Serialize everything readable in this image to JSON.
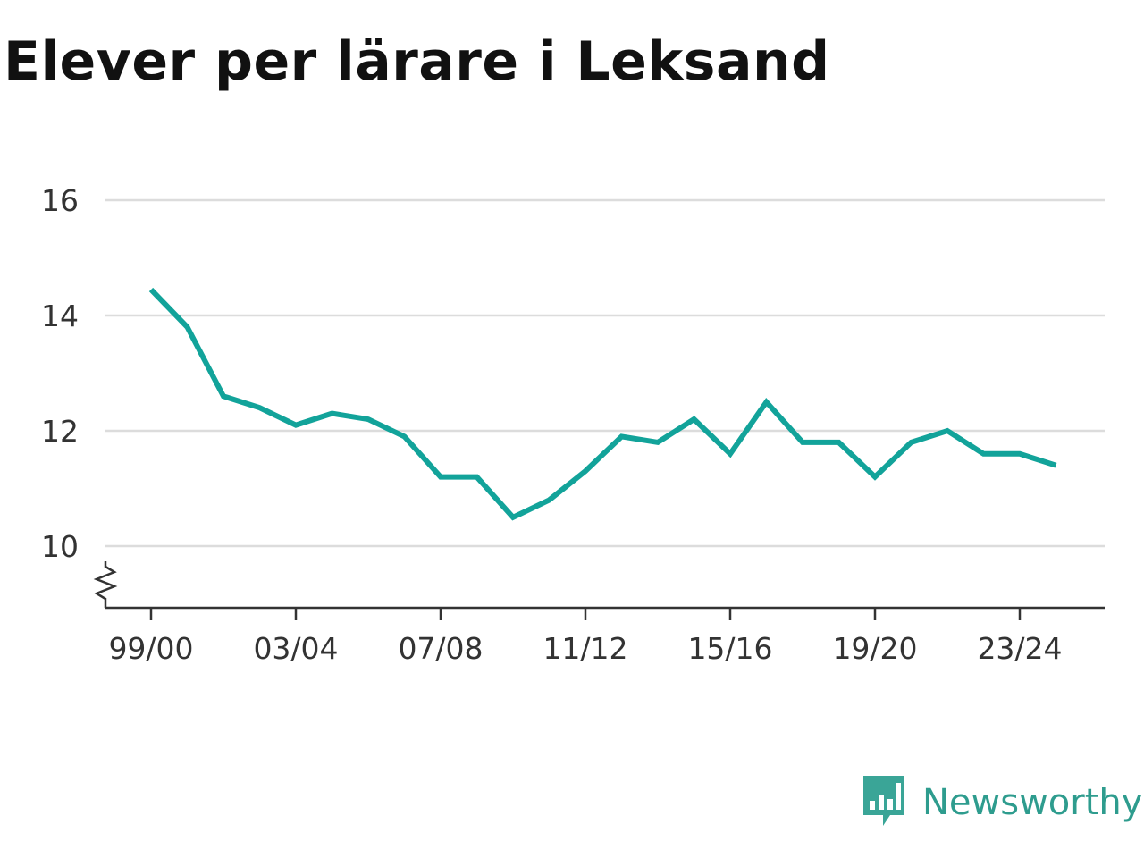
{
  "colors": {
    "line": "#12a39a",
    "grid": "#dcdcdc",
    "axis": "#333333",
    "brand": "#2e9c8e"
  },
  "brand": {
    "name": "Newsworthy",
    "icon": "bar-chart-speech-bubble-icon"
  },
  "chart_data": {
    "type": "line",
    "title": "Elever per lärare i Leksand",
    "xlabel": "",
    "ylabel": "",
    "ylim": [
      9,
      16
    ],
    "yticks": [
      "10",
      "12",
      "14",
      "16"
    ],
    "ytick_values": [
      10,
      12,
      14,
      16
    ],
    "xticks": [
      "99/00",
      "03/04",
      "07/08",
      "11/12",
      "15/16",
      "19/20",
      "23/24"
    ],
    "xtick_indices": [
      0,
      4,
      8,
      12,
      16,
      20,
      24
    ],
    "grid": true,
    "axis_break": true,
    "categories": [
      "99/00",
      "00/01",
      "01/02",
      "02/03",
      "03/04",
      "04/05",
      "05/06",
      "06/07",
      "07/08",
      "08/09",
      "09/10",
      "10/11",
      "11/12",
      "12/13",
      "13/14",
      "14/15",
      "15/16",
      "16/17",
      "17/18",
      "18/19",
      "19/20",
      "20/21",
      "21/22",
      "22/23",
      "23/24",
      "24/25"
    ],
    "series": [
      {
        "values": [
          14.45,
          13.8,
          12.6,
          12.4,
          12.1,
          12.3,
          12.2,
          11.9,
          11.2,
          11.2,
          10.5,
          10.8,
          11.3,
          11.9,
          11.8,
          12.2,
          11.6,
          12.5,
          11.8,
          11.8,
          11.2,
          11.8,
          12.0,
          11.6,
          11.6,
          11.4
        ]
      }
    ]
  }
}
